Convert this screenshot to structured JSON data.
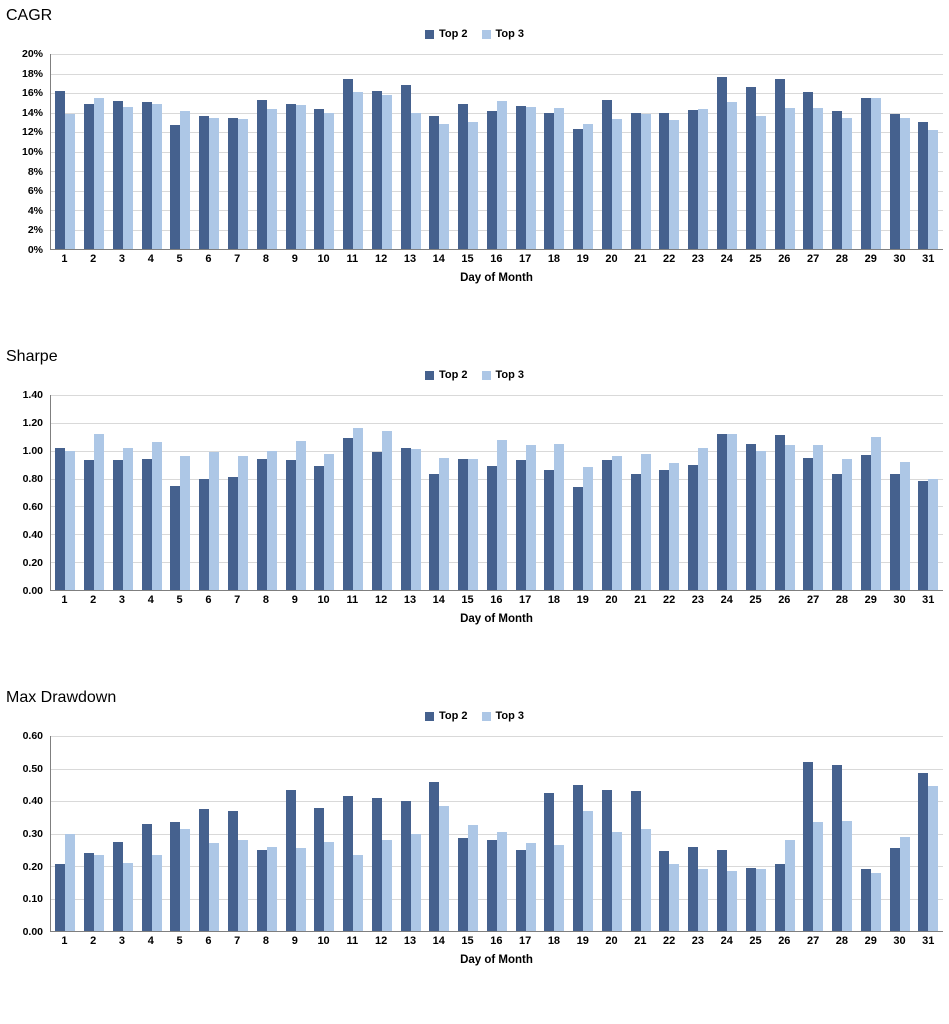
{
  "colors": {
    "top2": "#45618E",
    "top3": "#ADC7E6",
    "gridline": "#D9D9D9",
    "axis": "#7F7F7F"
  },
  "chart_data": [
    {
      "type": "bar",
      "title": "CAGR",
      "xlabel": "Day of Month",
      "y_min": 0,
      "y_max": 0.2,
      "y_step": 0.02,
      "y_format": "percent",
      "grid": true,
      "legend_position": "top-center",
      "categories": [
        "1",
        "2",
        "3",
        "4",
        "5",
        "6",
        "7",
        "8",
        "9",
        "10",
        "11",
        "12",
        "13",
        "14",
        "15",
        "16",
        "17",
        "18",
        "19",
        "20",
        "21",
        "22",
        "23",
        "24",
        "25",
        "26",
        "27",
        "28",
        "29",
        "30",
        "31"
      ],
      "series": [
        {
          "name": "Top 2",
          "values": [
            0.162,
            0.149,
            0.152,
            0.151,
            0.127,
            0.136,
            0.134,
            0.153,
            0.149,
            0.144,
            0.174,
            0.162,
            0.168,
            0.136,
            0.149,
            0.142,
            0.147,
            0.139,
            0.123,
            0.153,
            0.14,
            0.139,
            0.143,
            0.176,
            0.166,
            0.174,
            0.161,
            0.142,
            0.155,
            0.138,
            0.13
          ]
        },
        {
          "name": "Top 3",
          "values": [
            0.138,
            0.155,
            0.146,
            0.149,
            0.142,
            0.134,
            0.133,
            0.144,
            0.148,
            0.139,
            0.161,
            0.158,
            0.139,
            0.128,
            0.13,
            0.152,
            0.146,
            0.145,
            0.128,
            0.133,
            0.138,
            0.132,
            0.144,
            0.151,
            0.136,
            0.145,
            0.145,
            0.134,
            0.155,
            0.134,
            0.122
          ]
        }
      ]
    },
    {
      "type": "bar",
      "title": "Sharpe",
      "xlabel": "Day of Month",
      "y_min": 0,
      "y_max": 1.4,
      "y_step": 0.2,
      "y_format": "fixed2",
      "grid": true,
      "legend_position": "top-center",
      "categories": [
        "1",
        "2",
        "3",
        "4",
        "5",
        "6",
        "7",
        "8",
        "9",
        "10",
        "11",
        "12",
        "13",
        "14",
        "15",
        "16",
        "17",
        "18",
        "19",
        "20",
        "21",
        "22",
        "23",
        "24",
        "25",
        "26",
        "27",
        "28",
        "29",
        "30",
        "31"
      ],
      "series": [
        {
          "name": "Top 2",
          "values": [
            1.02,
            0.93,
            0.93,
            0.94,
            0.75,
            0.8,
            0.81,
            0.94,
            0.93,
            0.89,
            1.09,
            0.99,
            1.02,
            0.83,
            0.94,
            0.89,
            0.93,
            0.86,
            0.74,
            0.93,
            0.83,
            0.86,
            0.9,
            1.12,
            1.05,
            1.11,
            0.95,
            0.83,
            0.97,
            0.83,
            0.78
          ]
        },
        {
          "name": "Top 3",
          "values": [
            1.0,
            1.12,
            1.02,
            1.06,
            0.96,
            0.99,
            0.96,
            1.0,
            1.07,
            0.98,
            1.16,
            1.14,
            1.01,
            0.95,
            0.94,
            1.08,
            1.04,
            1.05,
            0.88,
            0.96,
            0.98,
            0.91,
            1.02,
            1.12,
            1.0,
            1.04,
            1.04,
            0.94,
            1.1,
            0.92,
            0.8
          ]
        }
      ]
    },
    {
      "type": "bar",
      "title": "Max Drawdown",
      "xlabel": "Day of Month",
      "y_min": 0,
      "y_max": 0.6,
      "y_step": 0.1,
      "y_format": "fixed2",
      "grid": true,
      "legend_position": "top-center",
      "categories": [
        "1",
        "2",
        "3",
        "4",
        "5",
        "6",
        "7",
        "8",
        "9",
        "10",
        "11",
        "12",
        "13",
        "14",
        "15",
        "16",
        "17",
        "18",
        "19",
        "20",
        "21",
        "22",
        "23",
        "24",
        "25",
        "26",
        "27",
        "28",
        "29",
        "30",
        "31"
      ],
      "series": [
        {
          "name": "Top 2",
          "values": [
            0.205,
            0.24,
            0.275,
            0.33,
            0.335,
            0.375,
            0.37,
            0.25,
            0.435,
            0.38,
            0.415,
            0.41,
            0.4,
            0.46,
            0.285,
            0.28,
            0.25,
            0.425,
            0.45,
            0.435,
            0.43,
            0.245,
            0.26,
            0.25,
            0.195,
            0.205,
            0.52,
            0.51,
            0.19,
            0.255,
            0.485
          ]
        },
        {
          "name": "Top 3",
          "values": [
            0.3,
            0.235,
            0.21,
            0.235,
            0.315,
            0.27,
            0.28,
            0.26,
            0.255,
            0.275,
            0.235,
            0.28,
            0.3,
            0.385,
            0.325,
            0.305,
            0.27,
            0.265,
            0.37,
            0.305,
            0.315,
            0.205,
            0.19,
            0.185,
            0.19,
            0.28,
            0.335,
            0.34,
            0.18,
            0.29,
            0.445
          ]
        }
      ]
    }
  ]
}
